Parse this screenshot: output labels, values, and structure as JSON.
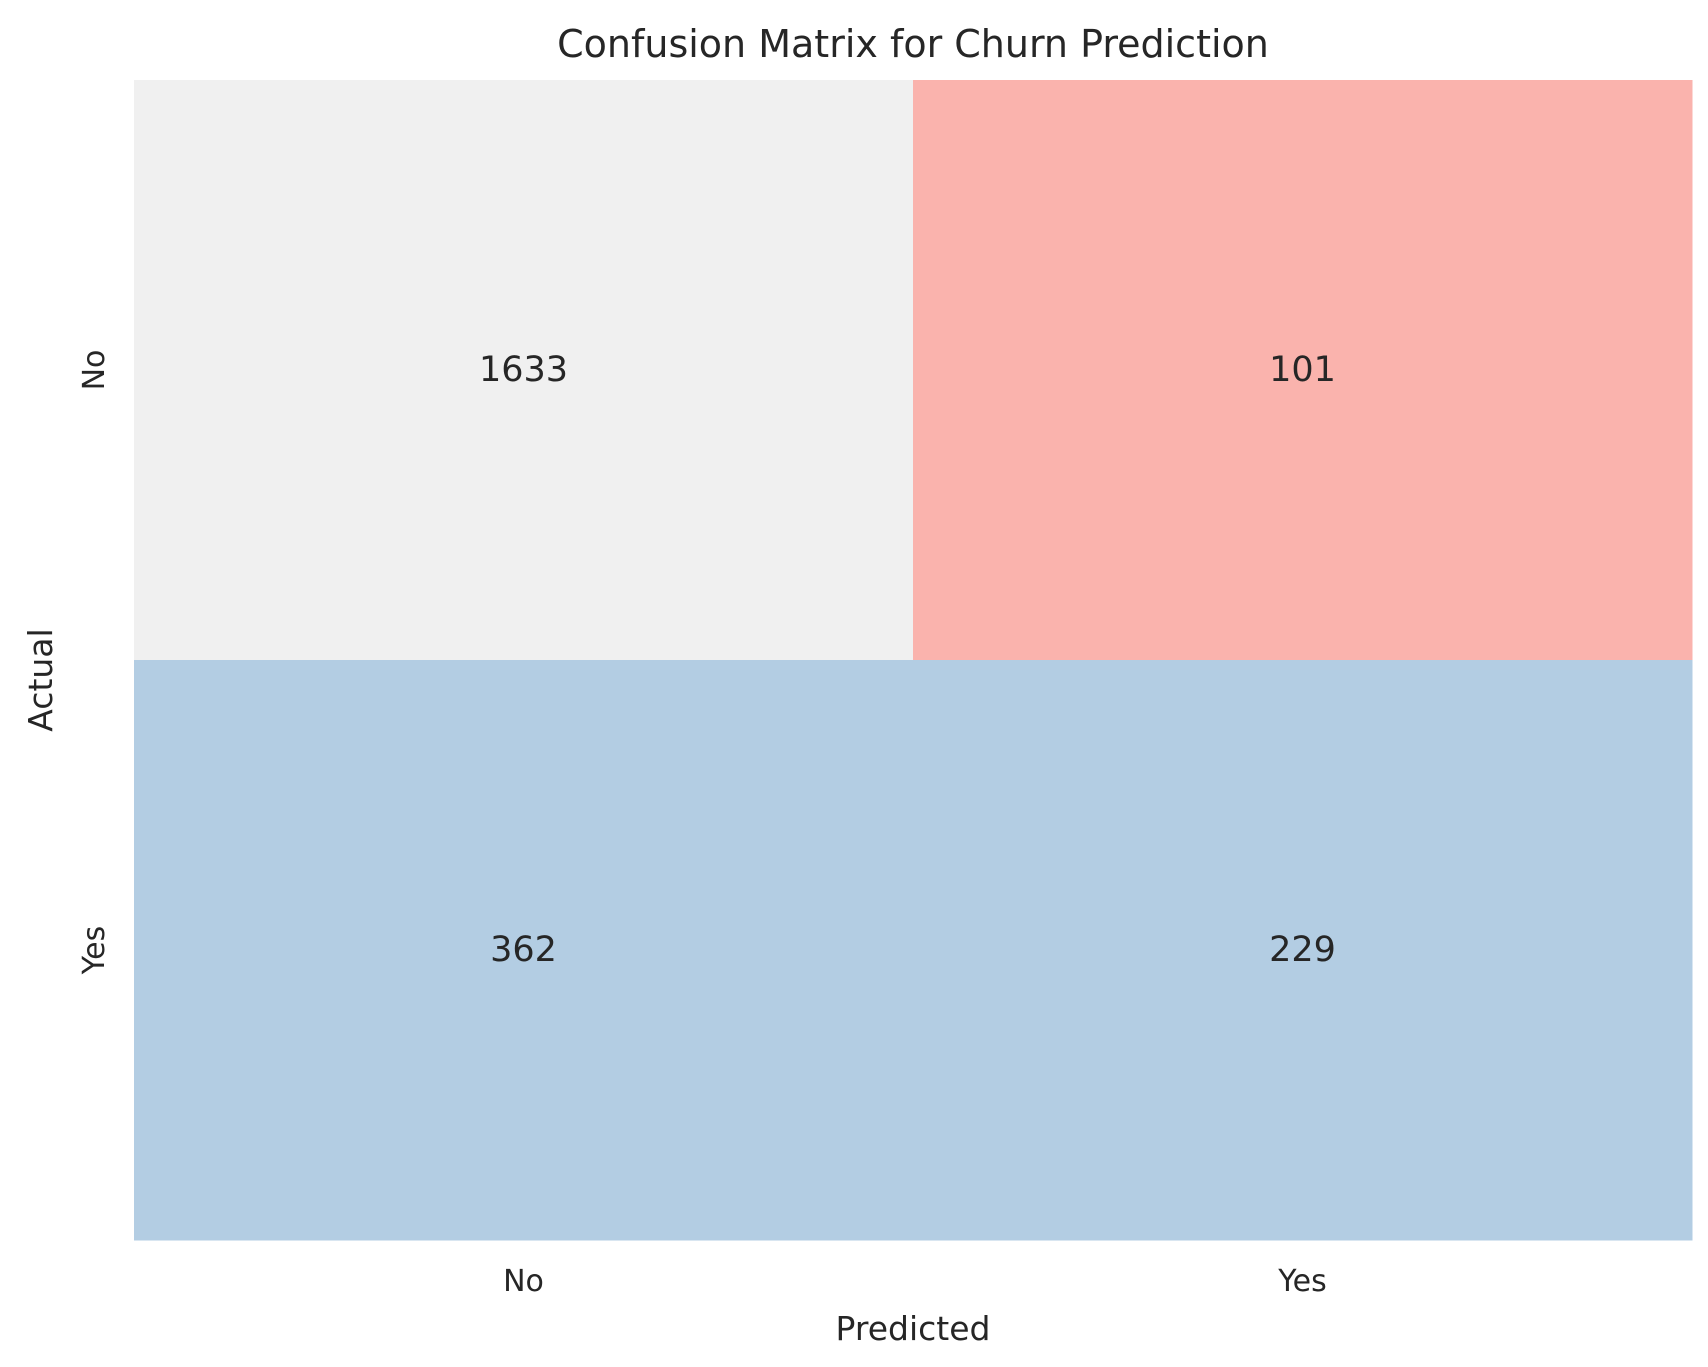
{
  "chart_data": {
    "type": "heatmap",
    "title": "Confusion Matrix for Churn Prediction",
    "xlabel": "Predicted",
    "ylabel": "Actual",
    "x_categories": [
      "No",
      "Yes"
    ],
    "y_categories": [
      "No",
      "Yes"
    ],
    "values": [
      [
        1633,
        101
      ],
      [
        362,
        229
      ]
    ],
    "cell_colors": [
      [
        "#f0f0f0",
        "#fab3ad"
      ],
      [
        "#b3cde3",
        "#b3cde3"
      ]
    ],
    "colorbar": false,
    "grid": false
  }
}
